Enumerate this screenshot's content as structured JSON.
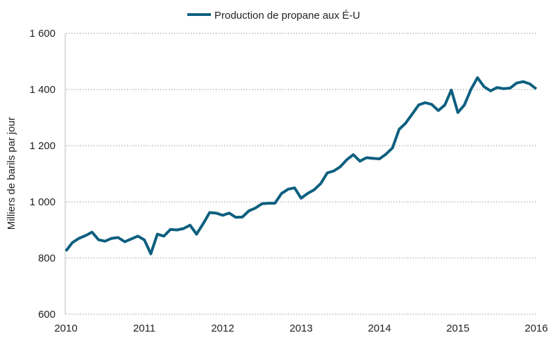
{
  "chart_data": {
    "type": "line",
    "title": "",
    "xlabel": "",
    "ylabel": "Milliers de barils par jour",
    "ylim": [
      600,
      1600
    ],
    "xlim": [
      "2010-01",
      "2016-01"
    ],
    "yticks": [
      600,
      800,
      1000,
      1200,
      1400,
      1600
    ],
    "ytick_labels": [
      "600",
      "800",
      "1 000",
      "1 200",
      "1 400",
      "1 600"
    ],
    "xtick_labels": [
      "2010",
      "2011",
      "2012",
      "2013",
      "2014",
      "2015",
      "2016"
    ],
    "grid": "horizontal dotted",
    "legend_placement": "top-center",
    "x_start": "2010-01",
    "x_frequency": "monthly",
    "series": [
      {
        "name": "Production de propane aux É-U",
        "color": "#0d5f7f",
        "values": [
          825,
          855,
          870,
          880,
          892,
          865,
          860,
          870,
          873,
          858,
          868,
          878,
          865,
          815,
          885,
          878,
          902,
          900,
          905,
          917,
          885,
          922,
          962,
          960,
          952,
          960,
          945,
          946,
          968,
          978,
          993,
          995,
          995,
          1030,
          1045,
          1050,
          1013,
          1030,
          1043,
          1065,
          1103,
          1110,
          1125,
          1150,
          1168,
          1145,
          1157,
          1155,
          1153,
          1170,
          1192,
          1258,
          1280,
          1312,
          1345,
          1353,
          1347,
          1325,
          1345,
          1398,
          1318,
          1345,
          1400,
          1442,
          1410,
          1395,
          1407,
          1403,
          1405,
          1423,
          1428,
          1420,
          1402
        ]
      }
    ]
  }
}
